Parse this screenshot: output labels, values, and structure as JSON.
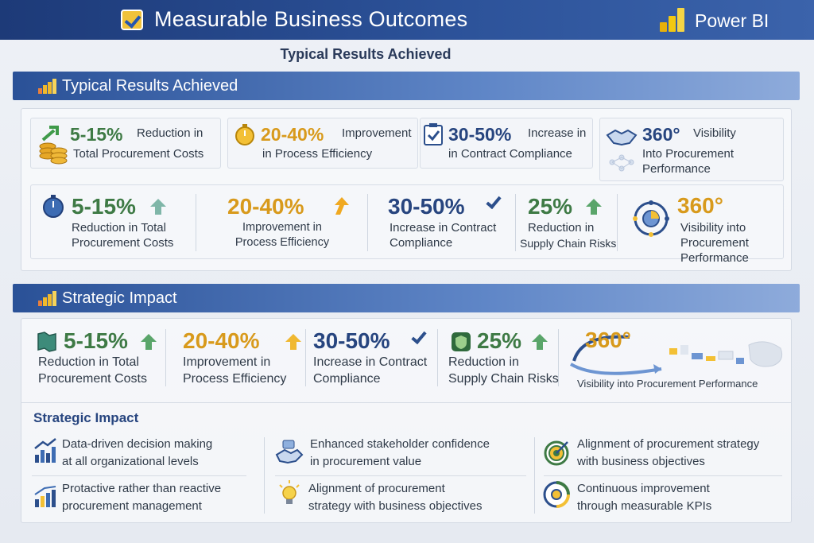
{
  "header": {
    "title": "Measurable Business Outcomes",
    "brand": "Power BI"
  },
  "subtitle": "Typical Results Achieved",
  "section1": {
    "title": "Typical Results Achieved",
    "row1": [
      {
        "value": "5-15%",
        "text_a": "Reduction in",
        "text_b": "Total Procurement Costs",
        "icon": "coins-icon"
      },
      {
        "value": "20-40%",
        "text_a": "Improvement",
        "text_b": "in Process Efficiency",
        "icon": "stopwatch-icon"
      },
      {
        "value": "30-50%",
        "text_a": "Increase in",
        "text_b": "in Contract Compliance",
        "icon": "clipboard-check-icon"
      },
      {
        "value": "360°",
        "text_a": "Visibility",
        "text_b": "Into Procurement",
        "text_c": "Performance",
        "icon": "handshake-icon"
      }
    ],
    "row2": [
      {
        "value": "5-15%",
        "line1": "Reduction in Total",
        "line2": "Procurement Costs",
        "icon": "stopwatch-icon"
      },
      {
        "value": "20-40%",
        "line1": "Improvement in",
        "line2": "Process Efficiency"
      },
      {
        "value": "30-50%",
        "line1": "Increase in Contract",
        "line2": "Compliance"
      },
      {
        "value": "25%",
        "line1": "Reduction in",
        "line2": "Supply Chain Risks"
      },
      {
        "value": "360°",
        "line1": "Visibility into",
        "line2": "Procurement",
        "line3": "Performance",
        "icon": "network-globe-icon"
      }
    ]
  },
  "section2": {
    "title": "Strategic Impact",
    "metrics": [
      {
        "value": "5-15%",
        "line1": "Reduction in Total",
        "line2": "Procurement Costs",
        "icon": "map-icon"
      },
      {
        "value": "20-40%",
        "line1": "Improvement in",
        "line2": "Process Efficiency"
      },
      {
        "value": "30-50%",
        "line1": "Increase in Contract",
        "line2": "Compliance"
      },
      {
        "value": "25%",
        "line1": "Reduction in",
        "line2": "Supply Chain Risks",
        "icon": "shield-icon"
      },
      {
        "value": "360°",
        "line1": "Visibility into Procurement Performance",
        "icon": "dashboard-icon"
      }
    ],
    "impact_title": "Strategic Impact",
    "impacts": [
      {
        "line1": "Data-driven decision making",
        "line2": "at all organizational levels",
        "icon": "chart-up-icon"
      },
      {
        "line1": "Enhanced stakeholder confidence",
        "line2": "in procurement value",
        "icon": "handshake-icon"
      },
      {
        "line1": "Alignment of procurement strategy",
        "line2": "with business objectives",
        "icon": "target-icon"
      },
      {
        "line1": "Protactive rather than reactive",
        "line2": "procurement management",
        "icon": "bar-chart-icon"
      },
      {
        "line1": "Alignment of procurement",
        "line2": "strategy with business objectives",
        "icon": "lightbulb-icon"
      },
      {
        "line1": "Continuous improvement",
        "line2": "through measurable KPIs",
        "icon": "gauge-icon"
      }
    ]
  },
  "colors": {
    "green": "#3e7a45",
    "orange": "#d89a1c",
    "navy": "#27457f",
    "header": "#1d3a78"
  }
}
